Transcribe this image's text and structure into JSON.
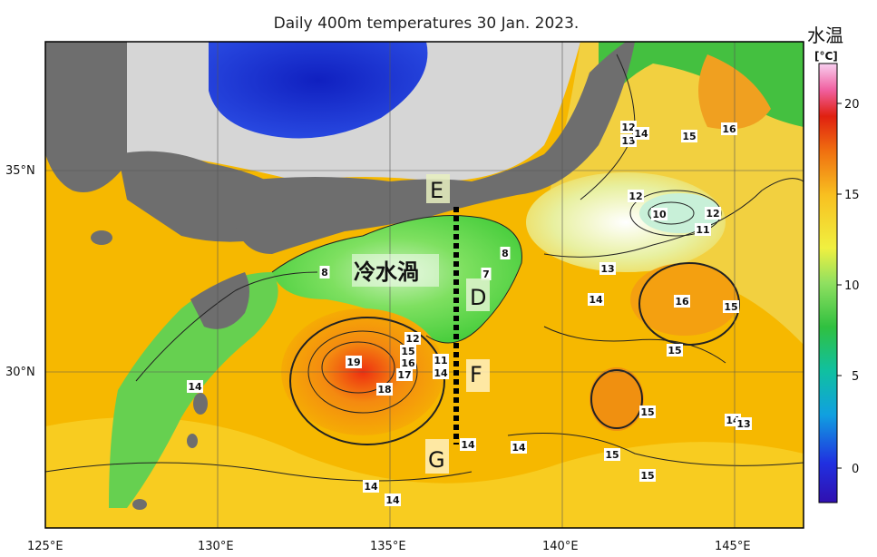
{
  "title": "Daily 400m temperatures 30 Jan. 2023.",
  "colorbar": {
    "title": "水温",
    "unit": "[°C]",
    "ticks": [
      "20",
      "15",
      "10",
      "5",
      "0"
    ]
  },
  "axes": {
    "lon_labels": [
      "125°E",
      "130°E",
      "135°E",
      "140°E",
      "145°E"
    ],
    "lat_labels": [
      "35°N",
      "30°N"
    ]
  },
  "annotations": {
    "cold_eddy": "冷水渦",
    "point_e": "E",
    "point_d": "D",
    "point_f": "F",
    "point_g": "G"
  },
  "contour_labels": [
    "12",
    "13",
    "14",
    "15",
    "16",
    "12",
    "10",
    "12",
    "11",
    "8",
    "8",
    "7",
    "13",
    "14",
    "16",
    "15",
    "15",
    "12",
    "15",
    "16",
    "17",
    "19",
    "18",
    "11",
    "14",
    "14",
    "15",
    "14",
    "13",
    "14",
    "14",
    "15",
    "15",
    "14",
    "14"
  ],
  "colors": {
    "land": "#6e6e6e",
    "shelf": "#d6d6d6",
    "warm": "#f4b400",
    "hot": "#e53010",
    "cold": "#66dd44",
    "deep_cold": "#2030d0"
  }
}
